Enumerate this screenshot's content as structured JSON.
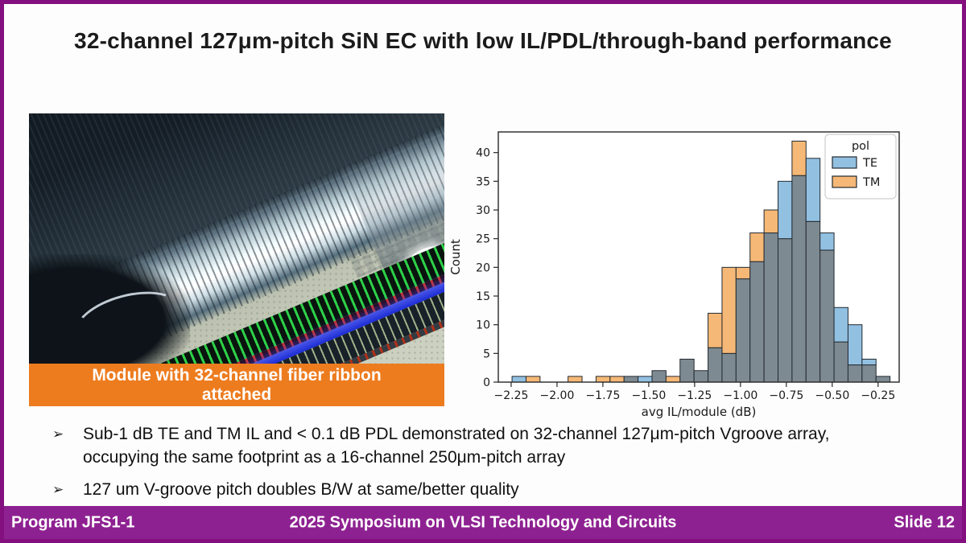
{
  "slide": {
    "title": "32-channel 127μm-pitch SiN EC with low IL/PDL/through-band performance",
    "colors": {
      "border_purple": "#83107E",
      "footer_purple": "#8E2191",
      "caption_orange": "#ED7C1F",
      "background": "#FDFDFD"
    }
  },
  "photo": {
    "caption_line1": "Module with 32-channel fiber ribbon",
    "caption_line2": "attached"
  },
  "bullets": {
    "marker": "➢",
    "items": [
      "Sub-1 dB TE and TM IL and < 0.1 dB PDL demonstrated on 32-channel 127μm-pitch Vgroove array, occupying the same footprint as a 16-channel 250μm-pitch array",
      "127 um V-groove pitch doubles B/W at same/better quality"
    ]
  },
  "footer": {
    "left": "Program JFS1-1",
    "center": "2025 Symposium on VLSI Technology and Circuits",
    "right": "Slide 12"
  },
  "chart_data": {
    "type": "bar",
    "subtype": "overlaid_histogram",
    "title": "",
    "xlabel": "avg IL/module (dB)",
    "ylabel": "Count",
    "bins": {
      "start": -2.245,
      "width": 0.0763,
      "count": 27
    },
    "series": [
      {
        "name": "TE",
        "color": "#92C0E1",
        "values": [
          1,
          0,
          0,
          0,
          0,
          0,
          0,
          0,
          1,
          1,
          2,
          0,
          4,
          2,
          6,
          5,
          18,
          21,
          26,
          35,
          36,
          39,
          26,
          13,
          10,
          4,
          1
        ]
      },
      {
        "name": "TM",
        "color": "#F6B876",
        "values": [
          0,
          1,
          0,
          0,
          1,
          0,
          1,
          1,
          1,
          0,
          2,
          1,
          4,
          2,
          12,
          20,
          20,
          26,
          30,
          25,
          42,
          28,
          23,
          7,
          3,
          3,
          1
        ]
      }
    ],
    "overlap_color": "#7E8A92",
    "edge_color": "#232A30",
    "xlim": [
      -2.32,
      -0.135
    ],
    "ylim": [
      0,
      43.6
    ],
    "xticks": [
      -2.25,
      -2.0,
      -1.75,
      -1.5,
      -1.25,
      -1.0,
      -0.75,
      -0.5,
      -0.25
    ],
    "xtick_labels": [
      "−2.25",
      "−2.00",
      "−1.75",
      "−1.50",
      "−1.25",
      "−1.00",
      "−0.75",
      "−0.50",
      "−0.25"
    ],
    "yticks": [
      0,
      5,
      10,
      15,
      20,
      25,
      30,
      35,
      40
    ],
    "legend": {
      "title": "pol",
      "entries": [
        "TE",
        "TM"
      ],
      "position": "upper_right"
    },
    "grid": false
  }
}
